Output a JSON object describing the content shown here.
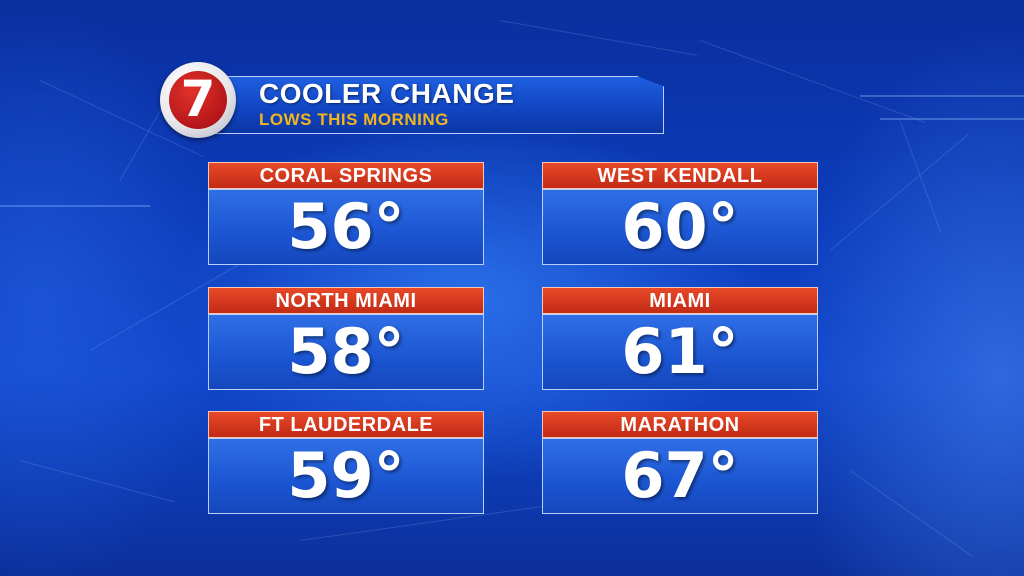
{
  "header": {
    "logo_number": "7",
    "title": "COOLER CHANGE",
    "subtitle": "LOWS THIS MORNING"
  },
  "colors": {
    "background": "#0d3dbd",
    "label_bar": "#d33a1f",
    "value_box": "#2460dc",
    "subtitle": "#f2b51d"
  },
  "cities": [
    {
      "name": "CORAL SPRINGS",
      "temp": "56°"
    },
    {
      "name": "WEST KENDALL",
      "temp": "60°"
    },
    {
      "name": "NORTH MIAMI",
      "temp": "58°"
    },
    {
      "name": "MIAMI",
      "temp": "61°"
    },
    {
      "name": "FT LAUDERDALE",
      "temp": "59°"
    },
    {
      "name": "MARATHON",
      "temp": "67°"
    }
  ]
}
